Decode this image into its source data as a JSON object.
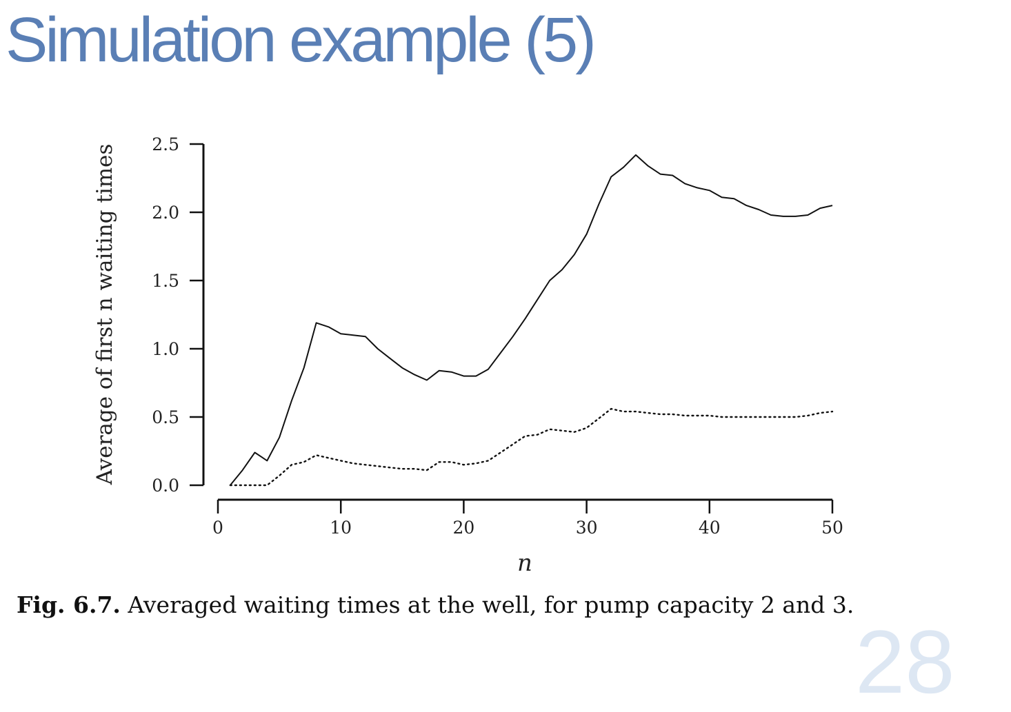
{
  "slide": {
    "title": "Simulation example (5)",
    "page_number": "28"
  },
  "caption": {
    "label": "Fig. 6.7.",
    "text": "Averaged waiting times at the well, for pump capacity 2 and 3."
  },
  "colors": {
    "title": "#5a7fb5",
    "lines": "#111111"
  },
  "chart_data": {
    "type": "line",
    "xlabel": "n",
    "ylabel": "Average of first n waiting times",
    "xlim": [
      0,
      50
    ],
    "ylim": [
      0,
      2.5
    ],
    "xticks": [
      0,
      10,
      20,
      30,
      40,
      50
    ],
    "yticks": [
      0.0,
      0.5,
      1.0,
      1.5,
      2.0,
      2.5
    ],
    "ytick_labels": [
      "0.0",
      "0.5",
      "1.0",
      "1.5",
      "2.0",
      "2.5"
    ],
    "grid": false,
    "x": [
      1,
      2,
      3,
      4,
      5,
      6,
      7,
      8,
      9,
      10,
      11,
      12,
      13,
      14,
      15,
      16,
      17,
      18,
      19,
      20,
      21,
      22,
      23,
      24,
      25,
      26,
      27,
      28,
      29,
      30,
      31,
      32,
      33,
      34,
      35,
      36,
      37,
      38,
      39,
      40,
      41,
      42,
      43,
      44,
      45,
      46,
      47,
      48,
      49,
      50
    ],
    "series": [
      {
        "style": "solid",
        "values": [
          0.0,
          0.11,
          0.24,
          0.18,
          0.35,
          0.62,
          0.86,
          1.19,
          1.16,
          1.11,
          1.1,
          1.09,
          1.0,
          0.93,
          0.86,
          0.81,
          0.77,
          0.84,
          0.83,
          0.8,
          0.8,
          0.85,
          0.97,
          1.09,
          1.22,
          1.36,
          1.5,
          1.58,
          1.69,
          1.84,
          2.06,
          2.26,
          2.33,
          2.42,
          2.34,
          2.28,
          2.27,
          2.21,
          2.18,
          2.16,
          2.11,
          2.1,
          2.05,
          2.02,
          1.98,
          1.97,
          1.97,
          1.98,
          2.03,
          2.05
        ]
      },
      {
        "style": "dotted",
        "values": [
          0.0,
          0.0,
          0.0,
          0.0,
          0.07,
          0.15,
          0.17,
          0.22,
          0.2,
          0.18,
          0.16,
          0.15,
          0.14,
          0.13,
          0.12,
          0.12,
          0.11,
          0.17,
          0.17,
          0.15,
          0.16,
          0.18,
          0.24,
          0.3,
          0.36,
          0.37,
          0.41,
          0.4,
          0.39,
          0.42,
          0.49,
          0.56,
          0.54,
          0.54,
          0.53,
          0.52,
          0.52,
          0.51,
          0.51,
          0.51,
          0.5,
          0.5,
          0.5,
          0.5,
          0.5,
          0.5,
          0.5,
          0.51,
          0.53,
          0.54
        ]
      }
    ]
  }
}
